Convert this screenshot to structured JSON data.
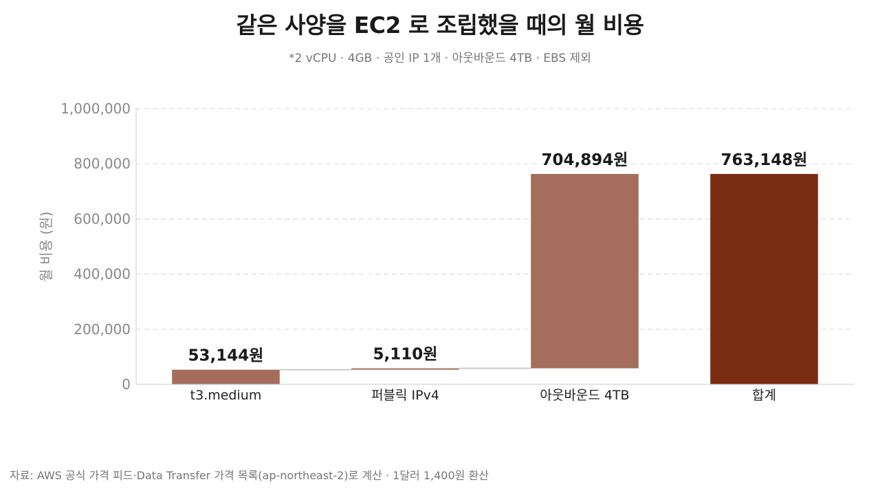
{
  "chart_data": {
    "type": "bar",
    "subtype": "waterfall",
    "title": "같은 사양을 EC2 로 조립했을 때의 월 비용",
    "subtitle": "*2 vCPU · 4GB · 공인 IP 1개 · 아웃바운드 4TB · EBS 제외",
    "xlabel": "",
    "ylabel": "월 비용 (원)",
    "ylim": [
      0,
      1000000
    ],
    "yticks": [
      0,
      200000,
      400000,
      600000,
      800000,
      1000000
    ],
    "ytick_labels": [
      "0",
      "200,000",
      "400,000",
      "600,000",
      "800,000",
      "1,000,000"
    ],
    "categories": [
      "t3.medium",
      "퍼블릭 IPv4",
      "아웃바운드 4TB",
      "합계"
    ],
    "values": [
      53144,
      5110,
      704894,
      763148
    ],
    "data_labels": [
      "53,144원",
      "5,110원",
      "704,894원",
      "763,148원"
    ],
    "kinds": [
      "step",
      "step",
      "step",
      "total"
    ],
    "colors": {
      "step": "#a56e5c",
      "total": "#7a2c12",
      "connector": "#cccccc",
      "grid": "#dddddd"
    },
    "grid": true,
    "legend": "none"
  },
  "source": "자료: AWS 공식 가격 피드·Data Transfer 가격 목록(ap-northeast-2)로 계산 · 1달러 1,400원 환산"
}
